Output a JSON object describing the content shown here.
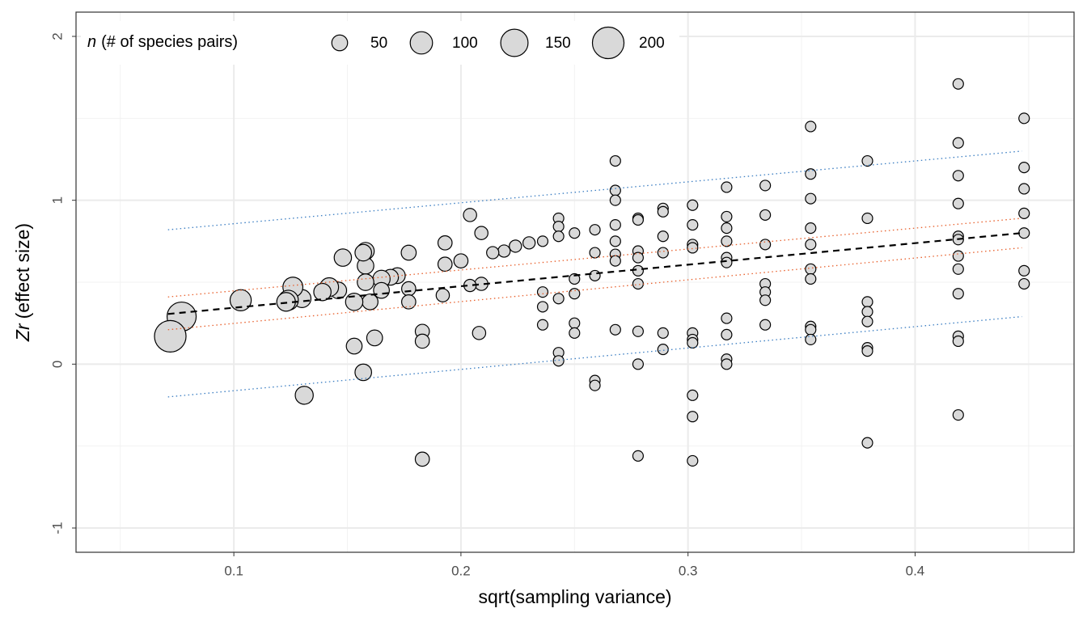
{
  "chart_data": {
    "type": "scatter",
    "x_label": "sqrt(sampling variance)",
    "y_label_symbol": "Zr",
    "y_label_rest": "(effect size)",
    "legend_title_symbol": "n",
    "legend_title_rest": "(# of species pairs)",
    "size_legend": [
      50,
      100,
      150,
      200
    ],
    "xlim": [
      0.0305,
      0.47
    ],
    "ylim": [
      -1.148,
      2.148
    ],
    "xticks": [
      0.1,
      0.2,
      0.3,
      0.4
    ],
    "yticks": [
      -1,
      0,
      1,
      2
    ],
    "x_minor_ticks": [
      0.05,
      0.15,
      0.25,
      0.35,
      0.45
    ],
    "y_minor_ticks": [
      -0.5,
      0.5,
      1.5
    ],
    "grid": true,
    "point_color": "#d9d9d9",
    "points": {
      "x": [
        0.448,
        0.448,
        0.448,
        0.448,
        0.448,
        0.448,
        0.448,
        0.419,
        0.419,
        0.419,
        0.419,
        0.419,
        0.419,
        0.419,
        0.419,
        0.419,
        0.419,
        0.419,
        0.419,
        0.379,
        0.379,
        0.379,
        0.379,
        0.379,
        0.379,
        0.379,
        0.379,
        0.354,
        0.354,
        0.354,
        0.354,
        0.354,
        0.354,
        0.354,
        0.354,
        0.354,
        0.354,
        0.334,
        0.334,
        0.334,
        0.334,
        0.334,
        0.334,
        0.334,
        0.317,
        0.317,
        0.317,
        0.317,
        0.317,
        0.317,
        0.317,
        0.317,
        0.317,
        0.317,
        0.302,
        0.302,
        0.302,
        0.302,
        0.302,
        0.302,
        0.302,
        0.302,
        0.302,
        0.302,
        0.289,
        0.289,
        0.289,
        0.289,
        0.289,
        0.289,
        0.278,
        0.278,
        0.278,
        0.278,
        0.278,
        0.278,
        0.278,
        0.278,
        0.278,
        0.268,
        0.268,
        0.268,
        0.268,
        0.268,
        0.268,
        0.268,
        0.268,
        0.259,
        0.259,
        0.259,
        0.259,
        0.259,
        0.25,
        0.25,
        0.25,
        0.25,
        0.25,
        0.243,
        0.243,
        0.243,
        0.243,
        0.243,
        0.243,
        0.236,
        0.236,
        0.236,
        0.236,
        0.23,
        0.224,
        0.219,
        0.214,
        0.209,
        0.209,
        0.208,
        0.204,
        0.204,
        0.2,
        0.193,
        0.193,
        0.192,
        0.183,
        0.183,
        0.183,
        0.177,
        0.177,
        0.177,
        0.172,
        0.169,
        0.165,
        0.165,
        0.162,
        0.16,
        0.158,
        0.158,
        0.158,
        0.157,
        0.157,
        0.153,
        0.153,
        0.148,
        0.146,
        0.142,
        0.139,
        0.131,
        0.13,
        0.126,
        0.124,
        0.123,
        0.103,
        0.077,
        0.072
      ],
      "y": [
        1.5,
        1.2,
        1.07,
        0.92,
        0.8,
        0.57,
        0.49,
        1.71,
        1.35,
        1.15,
        0.98,
        0.78,
        0.76,
        0.66,
        0.58,
        0.43,
        0.17,
        0.14,
        -0.31,
        1.24,
        0.89,
        0.38,
        0.32,
        0.26,
        0.1,
        0.08,
        -0.48,
        1.45,
        1.16,
        1.01,
        0.83,
        0.73,
        0.58,
        0.52,
        0.23,
        0.21,
        0.15,
        1.09,
        0.91,
        0.73,
        0.49,
        0.44,
        0.39,
        0.24,
        1.08,
        0.9,
        0.83,
        0.75,
        0.65,
        0.62,
        0.28,
        0.18,
        0.03,
        0.0,
        0.97,
        0.85,
        0.73,
        0.71,
        0.19,
        0.15,
        0.13,
        -0.19,
        -0.32,
        -0.59,
        0.95,
        0.93,
        0.78,
        0.68,
        0.19,
        0.09,
        0.89,
        0.88,
        0.69,
        0.65,
        0.57,
        0.49,
        0.2,
        0.0,
        -0.56,
        1.24,
        1.06,
        1.0,
        0.85,
        0.75,
        0.67,
        0.63,
        0.21,
        0.82,
        0.68,
        0.54,
        -0.1,
        -0.13,
        0.8,
        0.52,
        0.43,
        0.25,
        0.19,
        0.89,
        0.84,
        0.78,
        0.4,
        0.07,
        0.02,
        0.75,
        0.44,
        0.35,
        0.24,
        0.74,
        0.72,
        0.69,
        0.68,
        0.8,
        0.49,
        0.19,
        0.91,
        0.48,
        0.63,
        0.74,
        0.61,
        0.42,
        0.2,
        0.14,
        -0.58,
        0.68,
        0.46,
        0.38,
        0.54,
        0.53,
        0.52,
        0.45,
        0.16,
        0.38,
        0.69,
        0.6,
        0.5,
        -0.05,
        0.68,
        0.11,
        0.38,
        0.65,
        0.45,
        0.47,
        0.44,
        -0.19,
        0.4,
        0.47,
        0.39,
        0.38,
        0.39,
        0.29,
        0.17
      ],
      "sizes": [
        22,
        22,
        22,
        22,
        22,
        22,
        22,
        22,
        22,
        22,
        22,
        22,
        22,
        22,
        22,
        22,
        22,
        22,
        22,
        22,
        22,
        22,
        22,
        22,
        22,
        22,
        22,
        22,
        22,
        22,
        22,
        22,
        22,
        22,
        22,
        22,
        22,
        22,
        22,
        22,
        22,
        22,
        22,
        22,
        22,
        22,
        22,
        22,
        22,
        22,
        22,
        22,
        22,
        22,
        22,
        22,
        22,
        22,
        22,
        22,
        22,
        22,
        22,
        22,
        22,
        22,
        22,
        22,
        22,
        22,
        22,
        22,
        22,
        22,
        22,
        22,
        22,
        22,
        22,
        22,
        22,
        22,
        22,
        22,
        22,
        22,
        22,
        22,
        22,
        22,
        22,
        22,
        22,
        22,
        22,
        22,
        22,
        22,
        22,
        22,
        22,
        22,
        22,
        22,
        22,
        22,
        22,
        30,
        30,
        30,
        30,
        35,
        35,
        35,
        35,
        30,
        40,
        40,
        40,
        35,
        40,
        40,
        40,
        45,
        40,
        40,
        50,
        50,
        60,
        50,
        50,
        50,
        60,
        55,
        55,
        55,
        55,
        50,
        60,
        60,
        55,
        70,
        60,
        65,
        65,
        80,
        80,
        70,
        90,
        170,
        200
      ]
    },
    "lines": [
      {
        "color": "#3a7dc2",
        "style": "dotted",
        "x": [
          0.071,
          0.447
        ],
        "y": [
          0.82,
          1.3
        ]
      },
      {
        "color": "#3a7dc2",
        "style": "dotted",
        "x": [
          0.071,
          0.447
        ],
        "y": [
          -0.2,
          0.29
        ]
      },
      {
        "color": "#e8602c",
        "style": "dotted",
        "x": [
          0.071,
          0.447
        ],
        "y": [
          0.41,
          0.89
        ]
      },
      {
        "color": "#e8602c",
        "style": "dotted",
        "x": [
          0.071,
          0.447
        ],
        "y": [
          0.21,
          0.71
        ]
      },
      {
        "color": "#000000",
        "style": "dashed",
        "x": [
          0.071,
          0.447
        ],
        "y": [
          0.306,
          0.8
        ]
      }
    ]
  }
}
